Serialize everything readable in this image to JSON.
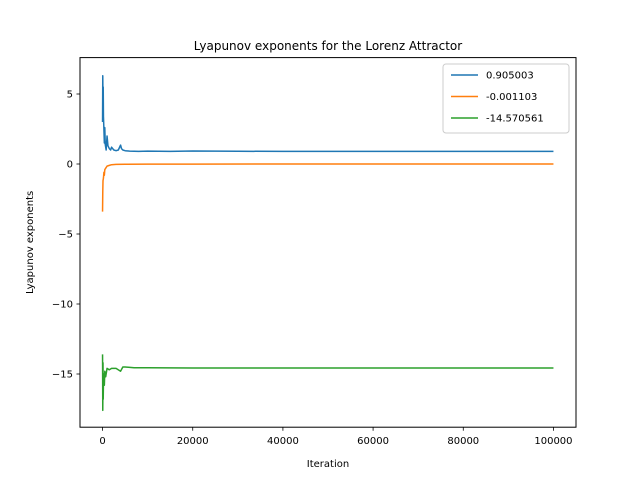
{
  "chart_data": {
    "type": "line",
    "title": "Lyapunov exponents for the Lorenz Attractor",
    "xlabel": "Iteration",
    "ylabel": "Lyapunov exponents",
    "xlim": [
      -5000,
      105000
    ],
    "ylim": [
      -18.8,
      7.6
    ],
    "xticks": [
      0,
      20000,
      40000,
      60000,
      80000,
      100000
    ],
    "xtick_labels": [
      "0",
      "20000",
      "40000",
      "60000",
      "80000",
      "100000"
    ],
    "yticks": [
      5,
      0,
      -5,
      -10,
      -15
    ],
    "ytick_labels": [
      "5",
      "0",
      "−5",
      "−10",
      "−15"
    ],
    "grid": false,
    "legend_position": "top-right",
    "series": [
      {
        "name": "0.905003",
        "color": "#1f77b4",
        "x": [
          0,
          50,
          100,
          150,
          200,
          300,
          400,
          500,
          600,
          800,
          1000,
          1200,
          1500,
          1800,
          2000,
          2500,
          3000,
          3500,
          4000,
          4200,
          4500,
          5000,
          6000,
          8000,
          10000,
          15000,
          20000,
          30000,
          40000,
          50000,
          60000,
          70000,
          80000,
          90000,
          100000
        ],
        "y": [
          3.0,
          6.3,
          4.5,
          5.5,
          3.4,
          2.5,
          1.5,
          2.6,
          1.4,
          1.0,
          2.0,
          1.3,
          1.1,
          1.0,
          1.2,
          1.0,
          0.95,
          1.0,
          1.35,
          1.1,
          1.0,
          0.95,
          0.92,
          0.9,
          0.92,
          0.9,
          0.93,
          0.91,
          0.9,
          0.9,
          0.9,
          0.9,
          0.9,
          0.9,
          0.905
        ]
      },
      {
        "name": "-0.001103",
        "color": "#ff7f0e",
        "x": [
          0,
          50,
          100,
          200,
          300,
          400,
          500,
          700,
          1000,
          1500,
          2000,
          3000,
          5000,
          10000,
          20000,
          40000,
          60000,
          80000,
          100000
        ],
        "y": [
          -3.4,
          -2.0,
          -1.2,
          -1.0,
          -0.6,
          -0.8,
          -0.4,
          -0.3,
          -0.15,
          -0.1,
          -0.05,
          -0.03,
          -0.02,
          -0.01,
          -0.005,
          -0.002,
          -0.001,
          -0.001,
          -0.0011
        ]
      },
      {
        "name": "-14.570561",
        "color": "#2ca02c",
        "x": [
          0,
          50,
          100,
          150,
          200,
          300,
          400,
          500,
          700,
          1000,
          1500,
          2000,
          3000,
          4000,
          4500,
          5000,
          7000,
          10000,
          20000,
          40000,
          60000,
          80000,
          100000
        ],
        "y": [
          -13.6,
          -17.6,
          -14.2,
          -16.8,
          -15.6,
          -15.0,
          -15.8,
          -14.8,
          -15.2,
          -14.6,
          -14.7,
          -14.6,
          -14.6,
          -14.8,
          -14.5,
          -14.5,
          -14.55,
          -14.55,
          -14.57,
          -14.57,
          -14.57,
          -14.57,
          -14.5706
        ]
      }
    ]
  }
}
